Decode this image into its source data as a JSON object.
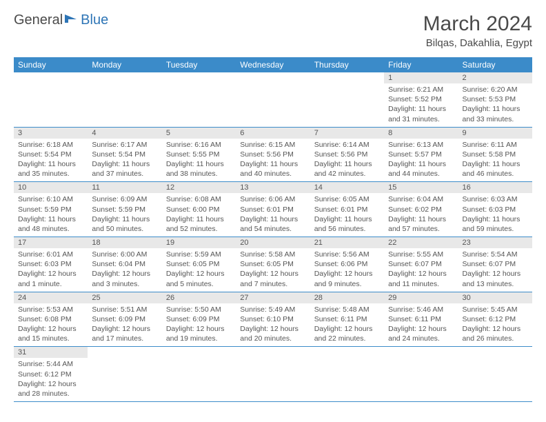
{
  "logo": {
    "text1": "General",
    "text2": "Blue",
    "icon_color": "#2e75b6"
  },
  "title": "March 2024",
  "location": "Bilqas, Dakahlia, Egypt",
  "colors": {
    "header_bg": "#3b8bc9",
    "header_fg": "#ffffff",
    "daynum_bg": "#e8e8e8",
    "border": "#3b8bc9",
    "text": "#555555"
  },
  "weekdays": [
    "Sunday",
    "Monday",
    "Tuesday",
    "Wednesday",
    "Thursday",
    "Friday",
    "Saturday"
  ],
  "weeks": [
    [
      null,
      null,
      null,
      null,
      null,
      {
        "n": "1",
        "sr": "6:21 AM",
        "ss": "5:52 PM",
        "dl": "11 hours and 31 minutes."
      },
      {
        "n": "2",
        "sr": "6:20 AM",
        "ss": "5:53 PM",
        "dl": "11 hours and 33 minutes."
      }
    ],
    [
      {
        "n": "3",
        "sr": "6:18 AM",
        "ss": "5:54 PM",
        "dl": "11 hours and 35 minutes."
      },
      {
        "n": "4",
        "sr": "6:17 AM",
        "ss": "5:54 PM",
        "dl": "11 hours and 37 minutes."
      },
      {
        "n": "5",
        "sr": "6:16 AM",
        "ss": "5:55 PM",
        "dl": "11 hours and 38 minutes."
      },
      {
        "n": "6",
        "sr": "6:15 AM",
        "ss": "5:56 PM",
        "dl": "11 hours and 40 minutes."
      },
      {
        "n": "7",
        "sr": "6:14 AM",
        "ss": "5:56 PM",
        "dl": "11 hours and 42 minutes."
      },
      {
        "n": "8",
        "sr": "6:13 AM",
        "ss": "5:57 PM",
        "dl": "11 hours and 44 minutes."
      },
      {
        "n": "9",
        "sr": "6:11 AM",
        "ss": "5:58 PM",
        "dl": "11 hours and 46 minutes."
      }
    ],
    [
      {
        "n": "10",
        "sr": "6:10 AM",
        "ss": "5:59 PM",
        "dl": "11 hours and 48 minutes."
      },
      {
        "n": "11",
        "sr": "6:09 AM",
        "ss": "5:59 PM",
        "dl": "11 hours and 50 minutes."
      },
      {
        "n": "12",
        "sr": "6:08 AM",
        "ss": "6:00 PM",
        "dl": "11 hours and 52 minutes."
      },
      {
        "n": "13",
        "sr": "6:06 AM",
        "ss": "6:01 PM",
        "dl": "11 hours and 54 minutes."
      },
      {
        "n": "14",
        "sr": "6:05 AM",
        "ss": "6:01 PM",
        "dl": "11 hours and 56 minutes."
      },
      {
        "n": "15",
        "sr": "6:04 AM",
        "ss": "6:02 PM",
        "dl": "11 hours and 57 minutes."
      },
      {
        "n": "16",
        "sr": "6:03 AM",
        "ss": "6:03 PM",
        "dl": "11 hours and 59 minutes."
      }
    ],
    [
      {
        "n": "17",
        "sr": "6:01 AM",
        "ss": "6:03 PM",
        "dl": "12 hours and 1 minute."
      },
      {
        "n": "18",
        "sr": "6:00 AM",
        "ss": "6:04 PM",
        "dl": "12 hours and 3 minutes."
      },
      {
        "n": "19",
        "sr": "5:59 AM",
        "ss": "6:05 PM",
        "dl": "12 hours and 5 minutes."
      },
      {
        "n": "20",
        "sr": "5:58 AM",
        "ss": "6:05 PM",
        "dl": "12 hours and 7 minutes."
      },
      {
        "n": "21",
        "sr": "5:56 AM",
        "ss": "6:06 PM",
        "dl": "12 hours and 9 minutes."
      },
      {
        "n": "22",
        "sr": "5:55 AM",
        "ss": "6:07 PM",
        "dl": "12 hours and 11 minutes."
      },
      {
        "n": "23",
        "sr": "5:54 AM",
        "ss": "6:07 PM",
        "dl": "12 hours and 13 minutes."
      }
    ],
    [
      {
        "n": "24",
        "sr": "5:53 AM",
        "ss": "6:08 PM",
        "dl": "12 hours and 15 minutes."
      },
      {
        "n": "25",
        "sr": "5:51 AM",
        "ss": "6:09 PM",
        "dl": "12 hours and 17 minutes."
      },
      {
        "n": "26",
        "sr": "5:50 AM",
        "ss": "6:09 PM",
        "dl": "12 hours and 19 minutes."
      },
      {
        "n": "27",
        "sr": "5:49 AM",
        "ss": "6:10 PM",
        "dl": "12 hours and 20 minutes."
      },
      {
        "n": "28",
        "sr": "5:48 AM",
        "ss": "6:11 PM",
        "dl": "12 hours and 22 minutes."
      },
      {
        "n": "29",
        "sr": "5:46 AM",
        "ss": "6:11 PM",
        "dl": "12 hours and 24 minutes."
      },
      {
        "n": "30",
        "sr": "5:45 AM",
        "ss": "6:12 PM",
        "dl": "12 hours and 26 minutes."
      }
    ],
    [
      {
        "n": "31",
        "sr": "5:44 AM",
        "ss": "6:12 PM",
        "dl": "12 hours and 28 minutes."
      },
      null,
      null,
      null,
      null,
      null,
      null
    ]
  ],
  "labels": {
    "sunrise": "Sunrise: ",
    "sunset": "Sunset: ",
    "daylight": "Daylight: "
  }
}
